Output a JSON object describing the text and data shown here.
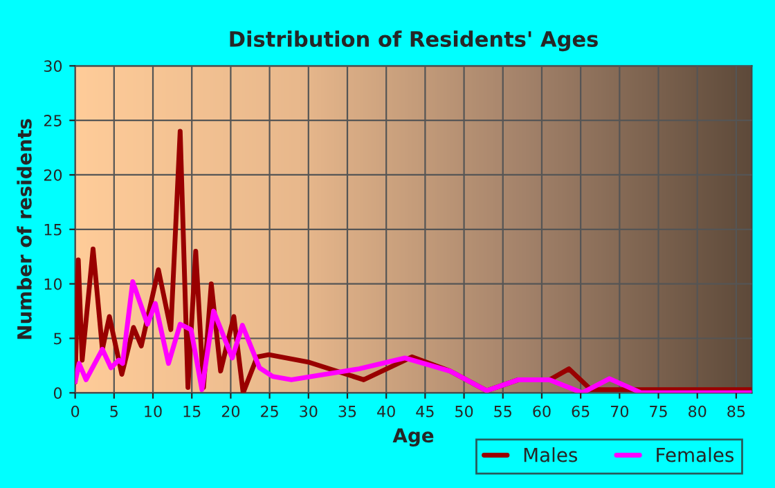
{
  "chart_data": {
    "type": "line",
    "title": "Distribution of Residents' Ages",
    "xlabel": "Age",
    "ylabel": "Number of residents",
    "xlim": [
      0,
      87
    ],
    "xticks": [
      0,
      5,
      10,
      15,
      20,
      25,
      30,
      35,
      40,
      45,
      50,
      55,
      60,
      65,
      70,
      75,
      80,
      85
    ],
    "ylim": [
      0,
      30
    ],
    "yticks": [
      0,
      5,
      10,
      15,
      20,
      25,
      30
    ],
    "grid": true,
    "legend": "bottom right",
    "series": [
      {
        "name": "Males",
        "color": "#990000",
        "x": [
          0,
          0.4,
          0.9,
          2.3,
          3.5,
          4.4,
          6,
          7.5,
          8.5,
          10.7,
          12.3,
          13.5,
          14.5,
          15.5,
          16.5,
          17.5,
          18.7,
          20.4,
          21.6,
          23.4,
          24.9,
          30.1,
          37.1,
          43.3,
          48.2,
          52.9,
          57,
          61,
          63.5,
          66.3,
          70,
          87
        ],
        "values": [
          1,
          12.2,
          3,
          13.2,
          4,
          7,
          1.7,
          6,
          4.3,
          11.3,
          5.8,
          24,
          0.5,
          13,
          0.5,
          10,
          2,
          7,
          0,
          3.3,
          3.5,
          2.8,
          1.2,
          3.3,
          2,
          0.2,
          1.2,
          1.2,
          2.2,
          0.3,
          0.3,
          0.3
        ]
      },
      {
        "name": "Females",
        "color": "#ff00ff",
        "x": [
          0,
          0.5,
          1.4,
          3.5,
          4.6,
          5.6,
          6.1,
          7.4,
          9.3,
          10.3,
          12,
          13.5,
          14.9,
          16.3,
          17.8,
          20.2,
          21.5,
          23.7,
          25.4,
          27.8,
          36.5,
          42.4,
          48.2,
          52.9,
          57,
          61,
          65.2,
          68.7,
          72.8,
          87
        ],
        "values": [
          1,
          2.7,
          1.2,
          4,
          2.3,
          3,
          2.7,
          10.2,
          6.3,
          8.2,
          2.7,
          6.3,
          5.8,
          0.3,
          7.5,
          3.2,
          6.2,
          2.3,
          1.5,
          1.2,
          2.2,
          3.2,
          2,
          0.2,
          1.2,
          1.2,
          0,
          1.3,
          0,
          0
        ]
      }
    ]
  }
}
